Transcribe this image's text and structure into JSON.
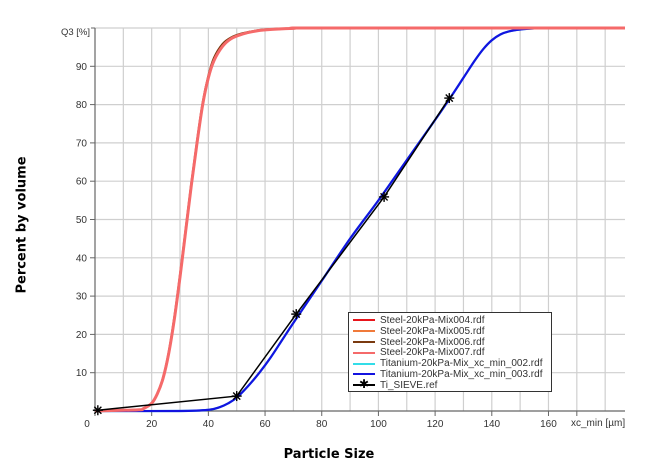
{
  "chart_data": {
    "type": "line",
    "title": "",
    "xlabel": "Particle Size",
    "ylabel": "Percent by volume",
    "x_axis_unit_label": "xc_min [µm]",
    "y_axis_unit_label": "Q3 [%]",
    "xlim": [
      0,
      187
    ],
    "ylim": [
      0,
      100
    ],
    "x_ticks": [
      0,
      20,
      40,
      60,
      80,
      100,
      120,
      140,
      160
    ],
    "y_ticks": [
      10,
      20,
      30,
      40,
      50,
      60,
      70,
      80,
      90
    ],
    "grid": true,
    "grid_x_step": 10,
    "grid_y_step": 10,
    "legend_position": "lower right",
    "series": [
      {
        "name": "Steel-20kPa-Mix004.rdf",
        "color": "#e8151b",
        "x": [
          0,
          15,
          17,
          20,
          22,
          24,
          26,
          28,
          30,
          32,
          34,
          36,
          38,
          40,
          42,
          45,
          48,
          52,
          56,
          60,
          70,
          80,
          187
        ],
        "y": [
          0,
          0.3,
          0.6,
          2,
          4.5,
          8.5,
          15,
          24,
          35,
          47,
          59,
          70,
          80,
          87,
          91.5,
          95.2,
          97.2,
          98.4,
          99.1,
          99.5,
          99.9,
          100,
          100
        ]
      },
      {
        "name": "Steel-20kPa-Mix005.rdf",
        "color": "#f07a3a",
        "x": [
          0,
          15,
          17,
          20,
          22,
          24,
          26,
          28,
          30,
          32,
          34,
          36,
          38,
          40,
          42,
          45,
          48,
          52,
          56,
          60,
          70,
          80,
          187
        ],
        "y": [
          0,
          0.3,
          0.6,
          2,
          4.5,
          8.5,
          15,
          24,
          35,
          47,
          59,
          70,
          80,
          87,
          91.5,
          95.2,
          97.2,
          98.4,
          99.1,
          99.5,
          99.9,
          100,
          100
        ]
      },
      {
        "name": "Steel-20kPa-Mix006.rdf",
        "color": "#7a3a10",
        "x": [
          0,
          15,
          17,
          20,
          22,
          24,
          26,
          28,
          30,
          32,
          34,
          36,
          38,
          40,
          42,
          45,
          48,
          52,
          56,
          60,
          70,
          80,
          187
        ],
        "y": [
          0,
          0.3,
          0.6,
          2.1,
          4.6,
          8.7,
          15.3,
          24.5,
          35.5,
          47.5,
          59.5,
          70.5,
          80.5,
          87.5,
          92.2,
          95.8,
          97.5,
          98.6,
          99.2,
          99.6,
          99.9,
          100,
          100
        ]
      },
      {
        "name": "Steel-20kPa-Mix007.rdf",
        "color": "#f56a6a",
        "x": [
          0,
          15,
          17,
          20,
          22,
          24,
          26,
          28,
          30,
          32,
          34,
          36,
          38,
          40,
          42,
          45,
          48,
          52,
          56,
          60,
          70,
          80,
          187
        ],
        "y": [
          0,
          0.3,
          0.6,
          2,
          4.5,
          8.5,
          15,
          24,
          35,
          47,
          59,
          70,
          80,
          87,
          91.5,
          95.2,
          97.2,
          98.4,
          99.1,
          99.5,
          99.9,
          100,
          100
        ]
      },
      {
        "name": "Titanium-20kPa-Mix_xc_min_002.rdf",
        "color": "#33dde8",
        "x": [
          0,
          30,
          40,
          44,
          47,
          50,
          54,
          58,
          62,
          66,
          70,
          80,
          90,
          100,
          110,
          120,
          126,
          130,
          134,
          137,
          140,
          143,
          146,
          150,
          155,
          160,
          187
        ],
        "y": [
          0,
          0,
          0.3,
          1,
          2,
          3.5,
          6.5,
          10,
          14,
          18.5,
          23,
          34,
          45,
          55,
          65.5,
          76,
          82.5,
          87,
          91.5,
          94.5,
          96.8,
          98.3,
          99.1,
          99.6,
          99.9,
          100,
          100
        ]
      },
      {
        "name": "Titanium-20kPa-Mix_xc_min_003.rdf",
        "color": "#1313e0",
        "x": [
          0,
          30,
          40,
          44,
          47,
          50,
          54,
          58,
          62,
          66,
          70,
          80,
          90,
          100,
          110,
          120,
          126,
          130,
          134,
          137,
          140,
          143,
          146,
          150,
          155,
          160,
          187
        ],
        "y": [
          0,
          0,
          0.3,
          1,
          2,
          3.5,
          6.5,
          10,
          14,
          18.5,
          23,
          34,
          45,
          55,
          65.5,
          76,
          82.5,
          87,
          91.5,
          94.5,
          96.8,
          98.3,
          99.1,
          99.6,
          99.9,
          100,
          100
        ]
      },
      {
        "name": "Ti_SIEVE.ref",
        "color": "#000000",
        "marker": "star",
        "x": [
          1,
          50,
          71,
          102,
          125
        ],
        "y": [
          0.2,
          3.9,
          25.3,
          55.9,
          81.7
        ]
      }
    ]
  },
  "axes": {
    "x_unit_label": "xc_min [µm]",
    "y_unit_label": "Q3 [%]",
    "x_title": "Particle Size",
    "y_title": "Percent by volume"
  },
  "legend": {
    "items": [
      {
        "label": "Steel-20kPa-Mix004.rdf",
        "color": "#e8151b"
      },
      {
        "label": "Steel-20kPa-Mix005.rdf",
        "color": "#f07a3a"
      },
      {
        "label": "Steel-20kPa-Mix006.rdf",
        "color": "#7a3a10"
      },
      {
        "label": "Steel-20kPa-Mix007.rdf",
        "color": "#f56a6a"
      },
      {
        "label": "Titanium-20kPa-Mix_xc_min_002.rdf",
        "color": "#33dde8"
      },
      {
        "label": "Titanium-20kPa-Mix_xc_min_003.rdf",
        "color": "#1313e0"
      },
      {
        "label": "Ti_SIEVE.ref",
        "color": "#000000",
        "marker": "star"
      }
    ]
  }
}
